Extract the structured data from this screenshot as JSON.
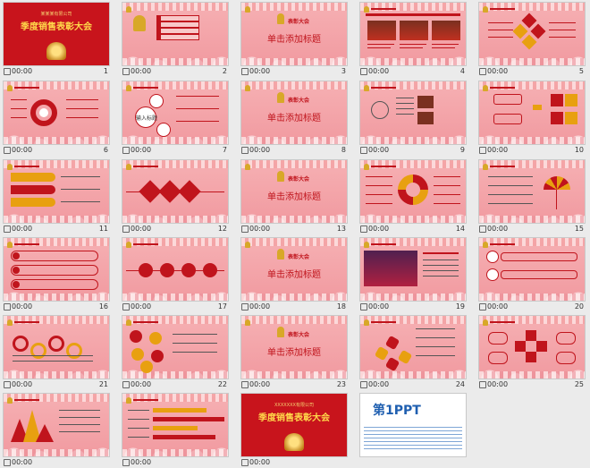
{
  "slides": [
    {
      "num": "1",
      "time": "00:00",
      "variant": "red-cover",
      "company": "某某某有限公司",
      "title": "季度销售表彰大会"
    },
    {
      "num": "2",
      "time": "00:00",
      "variant": "agenda"
    },
    {
      "num": "3",
      "time": "00:00",
      "variant": "section",
      "subtitle": "表彰大会",
      "heading": "单击添加标题"
    },
    {
      "num": "4",
      "time": "00:00",
      "variant": "photos"
    },
    {
      "num": "5",
      "time": "00:00",
      "variant": "diamonds"
    },
    {
      "num": "6",
      "time": "00:00",
      "variant": "ring"
    },
    {
      "num": "7",
      "time": "00:00",
      "variant": "bubbles",
      "label": "输入标题"
    },
    {
      "num": "8",
      "time": "00:00",
      "variant": "section",
      "subtitle": "表彰大会",
      "heading": "单击添加标题"
    },
    {
      "num": "9",
      "time": "00:00",
      "variant": "circle-lines"
    },
    {
      "num": "10",
      "time": "00:00",
      "variant": "boxes"
    },
    {
      "num": "11",
      "time": "00:00",
      "variant": "list"
    },
    {
      "num": "12",
      "time": "00:00",
      "variant": "diamond-row"
    },
    {
      "num": "13",
      "time": "00:00",
      "variant": "section",
      "subtitle": "表彰大会",
      "heading": "单击添加标题"
    },
    {
      "num": "14",
      "time": "00:00",
      "variant": "donut"
    },
    {
      "num": "15",
      "time": "00:00",
      "variant": "umbrella"
    },
    {
      "num": "16",
      "time": "00:00",
      "variant": "tabs"
    },
    {
      "num": "17",
      "time": "00:00",
      "variant": "icons"
    },
    {
      "num": "18",
      "time": "00:00",
      "variant": "section",
      "subtitle": "表彰大会",
      "heading": "单击添加标题"
    },
    {
      "num": "19",
      "time": "00:00",
      "variant": "stage"
    },
    {
      "num": "20",
      "time": "00:00",
      "variant": "letters"
    },
    {
      "num": "21",
      "time": "00:00",
      "variant": "wave"
    },
    {
      "num": "22",
      "time": "00:00",
      "variant": "dots"
    },
    {
      "num": "23",
      "time": "00:00",
      "variant": "section",
      "subtitle": "表彰大会",
      "heading": "单击添加标题"
    },
    {
      "num": "24",
      "time": "00:00",
      "variant": "hexes"
    },
    {
      "num": "25",
      "time": "00:00",
      "variant": "cross"
    },
    {
      "num": "",
      "time": "00:00",
      "variant": "peaks"
    },
    {
      "num": "",
      "time": "00:00",
      "variant": "bars"
    },
    {
      "num": "",
      "time": "00:00",
      "variant": "red-cover",
      "company": "XXXXXXX有限公司",
      "title": "季度销售表彰大会"
    },
    {
      "num": "",
      "time": "",
      "variant": "ppt-logo",
      "brand": "第1PPT"
    }
  ],
  "colors": {
    "accent": "#c0141c",
    "gold": "#e8a010",
    "pink": "#f3a4a8",
    "background": "#ebebeb"
  }
}
